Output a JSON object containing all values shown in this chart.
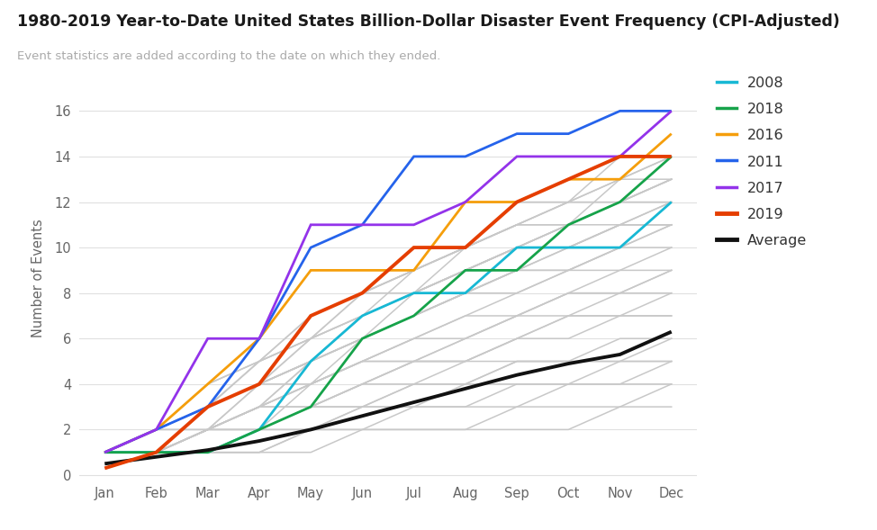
{
  "title": "1980-2019 Year-to-Date United States Billion-Dollar Disaster Event Frequency (CPI-Adjusted)",
  "subtitle": "Event statistics are added according to the date on which they ended.",
  "ylabel": "Number of Events",
  "title_color": "#1a1a1a",
  "subtitle_color": "#aaaaaa",
  "background_color": "#ffffff",
  "months": [
    "Jan",
    "Feb",
    "Mar",
    "Apr",
    "May",
    "Jun",
    "Jul",
    "Aug",
    "Sep",
    "Oct",
    "Nov",
    "Dec"
  ],
  "ylim": [
    -0.2,
    17.5
  ],
  "yticks": [
    0,
    2,
    4,
    6,
    8,
    10,
    12,
    14,
    16
  ],
  "highlighted": {
    "2008": {
      "color": "#17b8d4",
      "linewidth": 2.0,
      "values": [
        1,
        1,
        1,
        2,
        5,
        7,
        8,
        8,
        10,
        10,
        10,
        12
      ]
    },
    "2011": {
      "color": "#2563eb",
      "linewidth": 2.0,
      "values": [
        1,
        2,
        3,
        6,
        10,
        11,
        14,
        14,
        15,
        15,
        16,
        16
      ]
    },
    "2016": {
      "color": "#f59e0b",
      "linewidth": 2.0,
      "values": [
        1,
        2,
        4,
        6,
        9,
        9,
        9,
        12,
        12,
        13,
        13,
        15
      ]
    },
    "2017": {
      "color": "#9333ea",
      "linewidth": 2.0,
      "values": [
        1,
        2,
        6,
        6,
        11,
        11,
        11,
        12,
        14,
        14,
        14,
        16
      ]
    },
    "2018": {
      "color": "#16a34a",
      "linewidth": 2.0,
      "values": [
        1,
        1,
        1,
        2,
        3,
        6,
        7,
        9,
        9,
        11,
        12,
        14
      ]
    },
    "2019": {
      "color": "#e53e00",
      "linewidth": 2.8,
      "values": [
        0.3,
        1,
        3,
        4,
        7,
        8,
        10,
        10,
        12,
        13,
        14,
        14
      ]
    },
    "Average": {
      "color": "#111111",
      "linewidth": 2.8,
      "values": [
        0.5,
        0.8,
        1.1,
        1.5,
        2.0,
        2.6,
        3.2,
        3.8,
        4.4,
        4.9,
        5.3,
        6.3
      ]
    }
  },
  "gray_lines": [
    [
      1,
      1,
      1,
      1,
      1,
      2,
      2,
      2,
      2,
      2,
      3,
      3
    ],
    [
      1,
      1,
      1,
      1,
      2,
      2,
      2,
      2,
      3,
      3,
      3,
      4
    ],
    [
      1,
      1,
      1,
      2,
      2,
      3,
      3,
      3,
      4,
      4,
      4,
      5
    ],
    [
      1,
      1,
      1,
      1,
      2,
      2,
      3,
      3,
      3,
      4,
      4,
      4
    ],
    [
      1,
      1,
      2,
      2,
      2,
      3,
      3,
      4,
      4,
      4,
      5,
      5
    ],
    [
      1,
      1,
      1,
      2,
      3,
      3,
      4,
      5,
      5,
      5,
      5,
      6
    ],
    [
      1,
      1,
      2,
      2,
      3,
      4,
      4,
      4,
      5,
      5,
      5,
      5
    ],
    [
      1,
      1,
      1,
      2,
      3,
      3,
      4,
      4,
      5,
      5,
      6,
      6
    ],
    [
      1,
      1,
      2,
      3,
      3,
      4,
      5,
      5,
      6,
      7,
      7,
      7
    ],
    [
      1,
      2,
      2,
      3,
      3,
      4,
      5,
      5,
      6,
      6,
      7,
      7
    ],
    [
      1,
      1,
      2,
      2,
      3,
      4,
      5,
      5,
      6,
      7,
      7,
      8
    ],
    [
      1,
      1,
      1,
      2,
      4,
      5,
      5,
      6,
      7,
      7,
      8,
      8
    ],
    [
      1,
      2,
      2,
      3,
      4,
      5,
      5,
      6,
      7,
      8,
      8,
      9
    ],
    [
      1,
      1,
      2,
      3,
      4,
      5,
      6,
      7,
      7,
      8,
      8,
      9
    ],
    [
      1,
      1,
      2,
      3,
      4,
      5,
      6,
      6,
      7,
      8,
      9,
      9
    ],
    [
      1,
      2,
      3,
      4,
      4,
      5,
      6,
      7,
      8,
      9,
      9,
      10
    ],
    [
      1,
      1,
      2,
      3,
      5,
      6,
      7,
      8,
      8,
      9,
      10,
      10
    ],
    [
      1,
      2,
      3,
      4,
      5,
      6,
      7,
      8,
      9,
      9,
      10,
      11
    ],
    [
      1,
      2,
      3,
      4,
      5,
      6,
      7,
      8,
      9,
      10,
      11,
      11
    ],
    [
      1,
      1,
      2,
      3,
      4,
      6,
      7,
      8,
      9,
      9,
      10,
      11
    ],
    [
      1,
      2,
      3,
      4,
      5,
      6,
      8,
      9,
      10,
      11,
      11,
      11
    ],
    [
      1,
      2,
      3,
      4,
      5,
      7,
      8,
      9,
      10,
      10,
      11,
      11
    ],
    [
      1,
      1,
      2,
      4,
      5,
      6,
      7,
      8,
      9,
      10,
      11,
      12
    ],
    [
      1,
      2,
      3,
      4,
      6,
      7,
      8,
      9,
      10,
      10,
      11,
      12
    ],
    [
      1,
      1,
      2,
      4,
      6,
      7,
      8,
      9,
      10,
      11,
      12,
      12
    ],
    [
      1,
      2,
      3,
      5,
      6,
      7,
      8,
      9,
      10,
      11,
      12,
      13
    ],
    [
      1,
      2,
      4,
      5,
      6,
      8,
      8,
      9,
      10,
      11,
      12,
      13
    ],
    [
      1,
      1,
      2,
      3,
      5,
      7,
      8,
      10,
      11,
      11,
      13,
      13
    ],
    [
      1,
      2,
      3,
      5,
      6,
      8,
      9,
      10,
      11,
      12,
      13,
      14
    ],
    [
      1,
      2,
      3,
      4,
      5,
      7,
      9,
      10,
      11,
      12,
      12,
      13
    ],
    [
      1,
      2,
      4,
      5,
      7,
      8,
      9,
      10,
      11,
      11,
      12,
      13
    ],
    [
      1,
      2,
      3,
      5,
      7,
      8,
      9,
      10,
      12,
      12,
      13,
      14
    ],
    [
      1,
      2,
      3,
      4,
      7,
      8,
      9,
      10,
      11,
      12,
      14,
      14
    ]
  ],
  "gray_color": "#c8c8c8",
  "gray_linewidth": 1.1,
  "legend_labels": [
    "2008",
    "2018",
    "2016",
    "2011",
    "2017",
    "2019",
    "Average"
  ],
  "legend_colors": [
    "#17b8d4",
    "#16a34a",
    "#f59e0b",
    "#2563eb",
    "#9333ea",
    "#e53e00",
    "#111111"
  ]
}
